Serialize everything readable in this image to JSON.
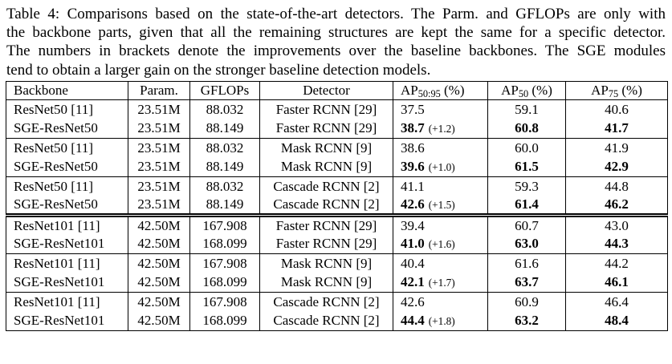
{
  "caption": {
    "lines": [
      "Table 4: Comparisons based on the state-of-the-art detectors. The Parm. and GFLOPs are only with",
      "the backbone parts, given that all the remaining structures are kept the same for a specific detector.",
      "The numbers in brackets denote the improvements over the baseline backbones. The SGE modules",
      "tend to obtain a larger gain on the stronger baseline detection models."
    ]
  },
  "table": {
    "headers": {
      "backbone": "Backbone",
      "param": "Param.",
      "gflops": "GFLOPs",
      "detector": "Detector",
      "ap5095": {
        "prefix": "AP",
        "sub": "50:95",
        "suffix": " (%)"
      },
      "ap50": {
        "prefix": "AP",
        "sub": "50",
        "suffix": " (%)"
      },
      "ap75": {
        "prefix": "AP",
        "sub": "75",
        "suffix": " (%)"
      }
    },
    "rows": [
      {
        "backbone": "ResNet50 [11]",
        "param": "23.51M",
        "gflops": "88.032",
        "detector": "Faster RCNN [29]",
        "ap": "37.5",
        "delta": "",
        "ap50": "59.1",
        "ap75": "40.6",
        "bold": false,
        "sep": "none"
      },
      {
        "backbone": "SGE-ResNet50",
        "param": "23.51M",
        "gflops": "88.149",
        "detector": "Faster RCNN [29]",
        "ap": "38.7",
        "delta": "(+1.2)",
        "ap50": "60.8",
        "ap75": "41.7",
        "bold": true,
        "sep": "none"
      },
      {
        "backbone": "ResNet50 [11]",
        "param": "23.51M",
        "gflops": "88.032",
        "detector": "Mask RCNN [9]",
        "ap": "38.6",
        "delta": "",
        "ap50": "60.0",
        "ap75": "41.9",
        "bold": false,
        "sep": "single"
      },
      {
        "backbone": "SGE-ResNet50",
        "param": "23.51M",
        "gflops": "88.149",
        "detector": "Mask RCNN [9]",
        "ap": "39.6",
        "delta": "(+1.0)",
        "ap50": "61.5",
        "ap75": "42.9",
        "bold": true,
        "sep": "none"
      },
      {
        "backbone": "ResNet50 [11]",
        "param": "23.51M",
        "gflops": "88.032",
        "detector": "Cascade RCNN [2]",
        "ap": "41.1",
        "delta": "",
        "ap50": "59.3",
        "ap75": "44.8",
        "bold": false,
        "sep": "single"
      },
      {
        "backbone": "SGE-ResNet50",
        "param": "23.51M",
        "gflops": "88.149",
        "detector": "Cascade RCNN [2]",
        "ap": "42.6",
        "delta": "(+1.5)",
        "ap50": "61.4",
        "ap75": "46.2",
        "bold": true,
        "sep": "none"
      },
      {
        "backbone": "ResNet101 [11]",
        "param": "42.50M",
        "gflops": "167.908",
        "detector": "Faster RCNN [29]",
        "ap": "39.4",
        "delta": "",
        "ap50": "60.7",
        "ap75": "43.0",
        "bold": false,
        "sep": "double"
      },
      {
        "backbone": "SGE-ResNet101",
        "param": "42.50M",
        "gflops": "168.099",
        "detector": "Faster RCNN [29]",
        "ap": "41.0",
        "delta": "(+1.6)",
        "ap50": "63.0",
        "ap75": "44.3",
        "bold": true,
        "sep": "none"
      },
      {
        "backbone": "ResNet101 [11]",
        "param": "42.50M",
        "gflops": "167.908",
        "detector": "Mask RCNN [9]",
        "ap": "40.4",
        "delta": "",
        "ap50": "61.6",
        "ap75": "44.2",
        "bold": false,
        "sep": "single"
      },
      {
        "backbone": "SGE-ResNet101",
        "param": "42.50M",
        "gflops": "168.099",
        "detector": "Mask RCNN [9]",
        "ap": "42.1",
        "delta": "(+1.7)",
        "ap50": "63.7",
        "ap75": "46.1",
        "bold": true,
        "sep": "none"
      },
      {
        "backbone": "ResNet101 [11]",
        "param": "42.50M",
        "gflops": "167.908",
        "detector": "Cascade RCNN [2]",
        "ap": "42.6",
        "delta": "",
        "ap50": "60.9",
        "ap75": "46.4",
        "bold": false,
        "sep": "single"
      },
      {
        "backbone": "SGE-ResNet101",
        "param": "42.50M",
        "gflops": "168.099",
        "detector": "Cascade RCNN [2]",
        "ap": "44.4",
        "delta": "(+1.8)",
        "ap50": "63.2",
        "ap75": "48.4",
        "bold": true,
        "sep": "none"
      }
    ]
  },
  "colors": {
    "text": "#000000",
    "background": "#ffffff",
    "border": "#000000"
  }
}
